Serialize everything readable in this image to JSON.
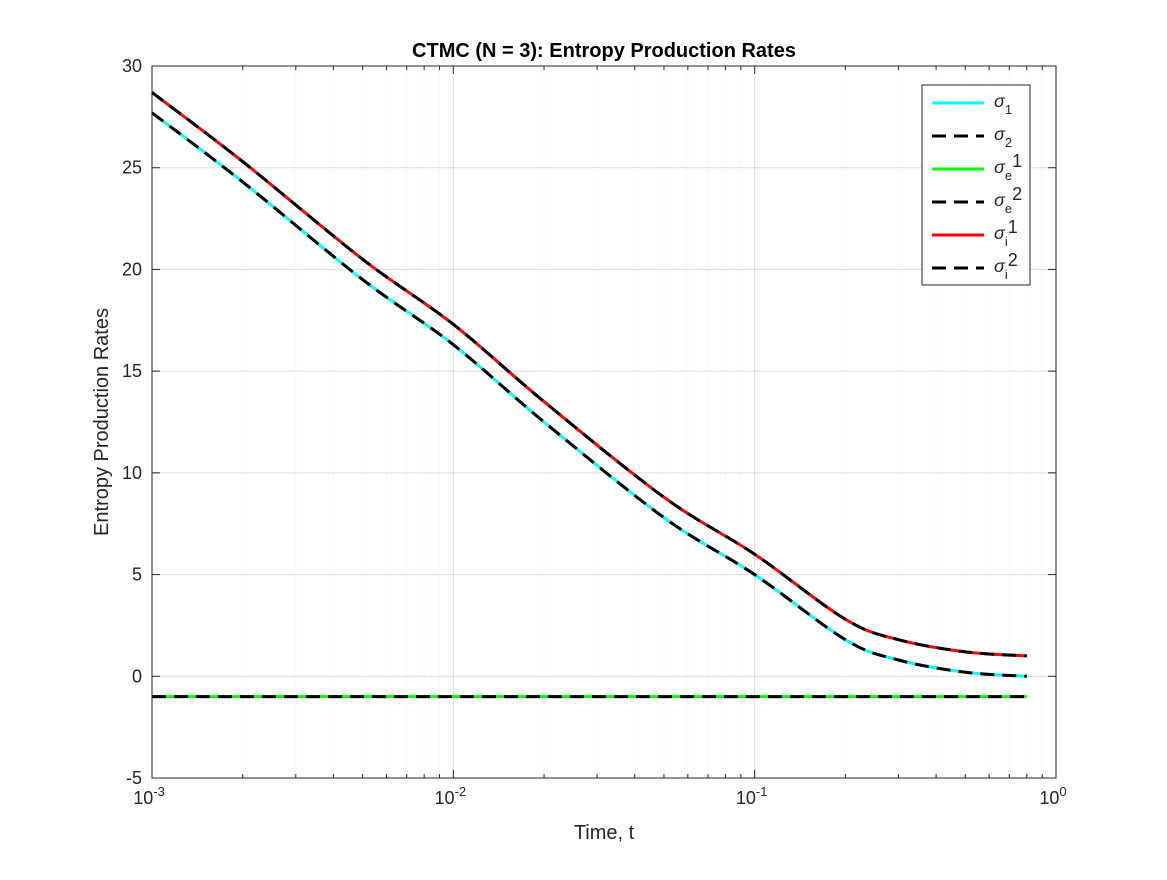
{
  "chart_data": {
    "type": "line",
    "title": "CTMC (N = 3): Entropy Production Rates",
    "xlabel": "Time, t",
    "ylabel": "Entropy Production Rates",
    "xscale": "log",
    "xlim": [
      0.001,
      1
    ],
    "ylim": [
      -5,
      30
    ],
    "grid": true,
    "legend_position": "top-right",
    "x_ticks": [
      {
        "value": 0.001,
        "base": "10",
        "exp": "-3"
      },
      {
        "value": 0.01,
        "base": "10",
        "exp": "-2"
      },
      {
        "value": 0.1,
        "base": "10",
        "exp": "-1"
      },
      {
        "value": 1,
        "base": "10",
        "exp": "0"
      }
    ],
    "y_ticks": [
      "30",
      "25",
      "20",
      "15",
      "10",
      "5",
      "0",
      "-5"
    ],
    "x": [
      0.001,
      0.002,
      0.005,
      0.01,
      0.02,
      0.05,
      0.1,
      0.2,
      0.3,
      0.5,
      0.8
    ],
    "series": [
      {
        "name": "σ_1",
        "legend": {
          "base": "σ",
          "sub": "1",
          "sup": ""
        },
        "color": "#00ffff",
        "dash": "solid",
        "values": [
          27.7,
          24.3,
          19.5,
          16.3,
          12.5,
          7.8,
          5.0,
          1.8,
          0.8,
          0.2,
          0.0
        ]
      },
      {
        "name": "σ_2",
        "legend": {
          "base": "σ",
          "sub": "2",
          "sup": ""
        },
        "color": "#000000",
        "dash": "dashed",
        "values": [
          27.7,
          24.3,
          19.5,
          16.3,
          12.5,
          7.8,
          5.0,
          1.8,
          0.8,
          0.2,
          0.0
        ]
      },
      {
        "name": "σ_e1",
        "legend": {
          "base": "σ",
          "sub": "e",
          "sup": "1"
        },
        "color": "#00ff00",
        "dash": "solid",
        "values": [
          -1,
          -1,
          -1,
          -1,
          -1,
          -1,
          -1,
          -1,
          -1,
          -1,
          -1
        ]
      },
      {
        "name": "σ_e2",
        "legend": {
          "base": "σ",
          "sub": "e",
          "sup": "2"
        },
        "color": "#000000",
        "dash": "dashed",
        "values": [
          -1,
          -1,
          -1,
          -1,
          -1,
          -1,
          -1,
          -1,
          -1,
          -1,
          -1
        ]
      },
      {
        "name": "σ_i1",
        "legend": {
          "base": "σ",
          "sub": "i",
          "sup": "1"
        },
        "color": "#ff0000",
        "dash": "solid",
        "values": [
          28.7,
          25.3,
          20.5,
          17.3,
          13.5,
          8.8,
          6.0,
          2.8,
          1.8,
          1.2,
          1.0
        ]
      },
      {
        "name": "σ_i2",
        "legend": {
          "base": "σ",
          "sub": "i",
          "sup": "2"
        },
        "color": "#000000",
        "dash": "dashed",
        "values": [
          28.7,
          25.3,
          20.5,
          17.3,
          13.5,
          8.8,
          6.0,
          2.8,
          1.8,
          1.2,
          1.0
        ]
      }
    ]
  }
}
